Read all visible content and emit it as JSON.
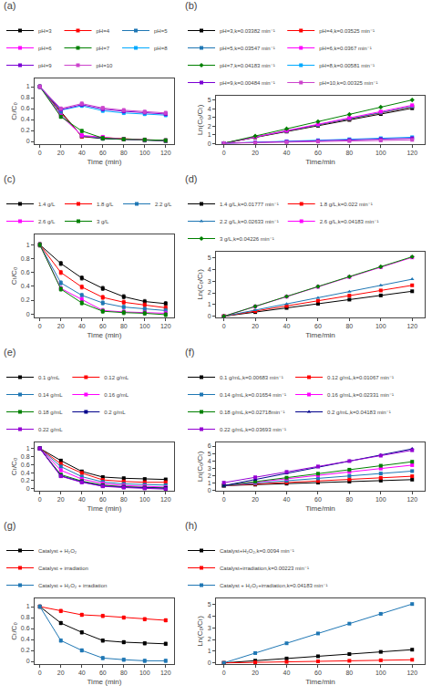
{
  "chart_data": [
    {
      "type": "line",
      "title": "(a)",
      "xlabel": "Time (min)",
      "ylabel": "Cₜ/C₀",
      "x": [
        0,
        20,
        40,
        60,
        80,
        100,
        120
      ],
      "xlim": [
        -5,
        128
      ],
      "xticks": [
        0,
        20,
        40,
        60,
        80,
        100,
        120
      ],
      "ylim": [
        -0.05,
        1.15
      ],
      "yticks": [
        0,
        0.2,
        0.4,
        0.6,
        0.8,
        1
      ],
      "grid": false,
      "series": [
        {
          "name": "pH=3",
          "color": "#000000",
          "marker": "square",
          "values": [
            1.0,
            0.55,
            0.09,
            0.05,
            0.04,
            0.02,
            0.01
          ],
          "error": 0.03
        },
        {
          "name": "pH=4",
          "color": "#ff0000",
          "marker": "square",
          "values": [
            1.0,
            0.53,
            0.09,
            0.07,
            0.04,
            0.02,
            0.01
          ],
          "error": 0.03
        },
        {
          "name": "pH=5",
          "color": "#1f77b4",
          "marker": "square",
          "values": [
            1.0,
            0.5,
            0.1,
            0.06,
            0.04,
            0.02,
            0.01
          ],
          "error": 0.03
        },
        {
          "name": "pH=6",
          "color": "#ff00ff",
          "marker": "square",
          "values": [
            1.0,
            0.47,
            0.11,
            0.08,
            0.04,
            0.03,
            0.02
          ],
          "error": 0.03
        },
        {
          "name": "pH=7",
          "color": "#008000",
          "marker": "square",
          "values": [
            1.0,
            0.45,
            0.19,
            0.06,
            0.04,
            0.03,
            0.02
          ],
          "error": 0.03
        },
        {
          "name": "pH=8",
          "color": "#00aaff",
          "marker": "square",
          "values": [
            1.0,
            0.57,
            0.65,
            0.56,
            0.52,
            0.5,
            0.48
          ],
          "error": 0.03
        },
        {
          "name": "pH=9",
          "color": "#7b00d4",
          "marker": "square",
          "values": [
            1.0,
            0.58,
            0.67,
            0.59,
            0.55,
            0.53,
            0.5
          ],
          "error": 0.03
        },
        {
          "name": "pH=10",
          "color": "#cc44cc",
          "marker": "square",
          "values": [
            1.0,
            0.6,
            0.69,
            0.61,
            0.57,
            0.54,
            0.52
          ],
          "error": 0.03
        }
      ]
    },
    {
      "type": "line",
      "title": "(b)",
      "xlabel": "Time/min",
      "ylabel": "Ln(C₀/Cₜ)",
      "x": [
        0,
        20,
        40,
        60,
        80,
        100,
        120
      ],
      "xlim": [
        -5,
        128
      ],
      "xticks": [
        0,
        20,
        40,
        60,
        80,
        100,
        120
      ],
      "ylim": [
        -0.1,
        5.5
      ],
      "yticks": [
        0,
        1,
        2,
        3,
        4,
        5
      ],
      "grid": false,
      "series": [
        {
          "name": "pH=3,k=0.03382 min⁻¹",
          "color": "#000000",
          "marker": "square",
          "values": [
            0,
            0.6764,
            1.3528,
            2.0292,
            2.7056,
            3.382,
            4.0584
          ]
        },
        {
          "name": "pH=4,k=0.03525 min⁻¹",
          "color": "#ff0000",
          "marker": "square",
          "values": [
            0,
            0.705,
            1.41,
            2.115,
            2.82,
            3.525,
            4.23
          ]
        },
        {
          "name": "pH=5,k=0.03547 min⁻¹",
          "color": "#1f77b4",
          "marker": "square",
          "values": [
            0,
            0.7094,
            1.4188,
            2.1282,
            2.8376,
            3.547,
            4.2564
          ]
        },
        {
          "name": "pH=6,k=0.0367 min⁻¹",
          "color": "#ff00ff",
          "marker": "square",
          "values": [
            0,
            0.734,
            1.468,
            2.202,
            2.936,
            3.67,
            4.404
          ]
        },
        {
          "name": "pH=7,k=0.04183 min⁻¹",
          "color": "#008000",
          "marker": "diamond",
          "values": [
            0,
            0.8366,
            1.6732,
            2.5098,
            3.3464,
            4.183,
            5.0196
          ]
        },
        {
          "name": "pH=8,k=0.00581 min⁻¹",
          "color": "#00aaff",
          "marker": "square",
          "values": [
            0,
            0.1162,
            0.2324,
            0.3486,
            0.4648,
            0.581,
            0.6972
          ]
        },
        {
          "name": "pH=9,k=0.00484 min⁻¹",
          "color": "#7b00d4",
          "marker": "square",
          "values": [
            0,
            0.0968,
            0.1936,
            0.2904,
            0.3872,
            0.484,
            0.5808
          ]
        },
        {
          "name": "pH=10,k=0.00325 min⁻¹",
          "color": "#cc44cc",
          "marker": "square",
          "values": [
            0,
            0.065,
            0.13,
            0.195,
            0.26,
            0.325,
            0.39
          ]
        }
      ]
    },
    {
      "type": "line",
      "title": "(c)",
      "xlabel": "Time (min)",
      "ylabel": "Cₜ/C₀",
      "x": [
        0,
        20,
        40,
        60,
        80,
        100,
        120
      ],
      "xlim": [
        -5,
        128
      ],
      "xticks": [
        0,
        20,
        40,
        60,
        80,
        100,
        120
      ],
      "ylim": [
        -0.05,
        1.15
      ],
      "yticks": [
        0,
        0.2,
        0.4,
        0.6,
        0.8,
        1
      ],
      "grid": false,
      "series": [
        {
          "name": "1.4 g/L",
          "color": "#000000",
          "marker": "square",
          "values": [
            1.0,
            0.73,
            0.52,
            0.37,
            0.25,
            0.18,
            0.15
          ],
          "error": 0.03
        },
        {
          "name": "1.8 g/L",
          "color": "#ff0000",
          "marker": "square",
          "values": [
            1.0,
            0.6,
            0.39,
            0.24,
            0.17,
            0.13,
            0.09
          ],
          "error": 0.03
        },
        {
          "name": "2.2 g/L",
          "color": "#1f77b4",
          "marker": "square",
          "values": [
            1.0,
            0.45,
            0.27,
            0.16,
            0.1,
            0.07,
            0.05
          ],
          "error": 0.03
        },
        {
          "name": "2.6 g/L",
          "color": "#ff00ff",
          "marker": "square",
          "values": [
            1.0,
            0.37,
            0.21,
            0.05,
            0.03,
            0.02,
            0.01
          ],
          "error": 0.03
        },
        {
          "name": "3 g/L",
          "color": "#008000",
          "marker": "square",
          "values": [
            1.0,
            0.36,
            0.16,
            0.04,
            0.02,
            0.01,
            -0.01
          ],
          "error": 0.03
        }
      ]
    },
    {
      "type": "line",
      "title": "(d)",
      "xlabel": "Time/min",
      "ylabel": "Ln(C₀/Cₜ)",
      "x": [
        0,
        20,
        40,
        60,
        80,
        100,
        120
      ],
      "xlim": [
        -5,
        128
      ],
      "xticks": [
        0,
        20,
        40,
        60,
        80,
        100,
        120
      ],
      "ylim": [
        -0.1,
        5.5
      ],
      "yticks": [
        0,
        1,
        2,
        3,
        4,
        5
      ],
      "grid": false,
      "series": [
        {
          "name": "1.4 g/L,k=0.01777 min⁻¹",
          "color": "#000000",
          "marker": "square",
          "values": [
            0,
            0.3554,
            0.7108,
            1.0662,
            1.4216,
            1.777,
            2.1324
          ]
        },
        {
          "name": "1.8 g/L,k=0.022 min⁻¹",
          "color": "#ff0000",
          "marker": "square",
          "values": [
            0,
            0.44,
            0.88,
            1.32,
            1.76,
            2.2,
            2.64
          ]
        },
        {
          "name": "2.2 g/L,k=0.02633 min⁻¹",
          "color": "#1f77b4",
          "marker": "triangle-up",
          "values": [
            0,
            0.5266,
            1.0532,
            1.5798,
            2.1064,
            2.633,
            3.1596
          ]
        },
        {
          "name": "2.6 g/L,k=0.04183 min⁻¹",
          "color": "#ff00ff",
          "marker": "square",
          "values": [
            0,
            0.8366,
            1.6732,
            2.5098,
            3.3464,
            4.183,
            5.0196
          ]
        },
        {
          "name": "3 g/L,k=0.04226 min⁻¹",
          "color": "#008000",
          "marker": "diamond",
          "values": [
            0,
            0.8452,
            1.6904,
            2.5356,
            3.3808,
            4.226,
            5.0712
          ]
        }
      ]
    },
    {
      "type": "line",
      "title": "(e)",
      "xlabel": "Time (min)",
      "ylabel": "Cₜ/C₀",
      "x": [
        0,
        20,
        40,
        60,
        80,
        100,
        120
      ],
      "xlim": [
        -5,
        128
      ],
      "xticks": [
        0,
        20,
        40,
        60,
        80,
        100,
        120
      ],
      "ylim": [
        -0.05,
        1.15
      ],
      "yticks": [
        0,
        0.2,
        0.4,
        0.6,
        0.8,
        1
      ],
      "grid": false,
      "series": [
        {
          "name": "0.1 g/mL",
          "color": "#000000",
          "marker": "square",
          "values": [
            1.0,
            0.7,
            0.43,
            0.29,
            0.26,
            0.24,
            0.23
          ],
          "error": 0.03
        },
        {
          "name": "0.12 g/mL",
          "color": "#ff0000",
          "marker": "square",
          "values": [
            1.0,
            0.62,
            0.39,
            0.22,
            0.18,
            0.16,
            0.16
          ],
          "error": 0.03
        },
        {
          "name": "0.14 g/mL",
          "color": "#1f77b4",
          "marker": "square",
          "values": [
            1.0,
            0.55,
            0.3,
            0.17,
            0.12,
            0.1,
            0.09
          ],
          "error": 0.03
        },
        {
          "name": "0.16 g/mL",
          "color": "#ff00ff",
          "marker": "square",
          "values": [
            1.0,
            0.46,
            0.24,
            0.13,
            0.08,
            0.06,
            0.04
          ],
          "error": 0.03
        },
        {
          "name": "0.18 g/mL",
          "color": "#008000",
          "marker": "square",
          "values": [
            1.0,
            0.35,
            0.19,
            0.09,
            0.05,
            0.03,
            0.02
          ],
          "error": 0.03
        },
        {
          "name": "0.2 g/mL",
          "color": "#00008b",
          "marker": "square",
          "values": [
            1.0,
            0.32,
            0.17,
            0.07,
            0.04,
            0.02,
            0.01
          ],
          "error": 0.03
        },
        {
          "name": "0.22 g/mL",
          "color": "#9400d3",
          "marker": "square",
          "values": [
            1.0,
            0.31,
            0.16,
            0.06,
            0.03,
            0.01,
            -0.01
          ],
          "error": 0.03
        }
      ]
    },
    {
      "type": "line",
      "title": "(f)",
      "xlabel": "Time/min",
      "ylabel": "Ln(C₀/Cₜ)",
      "x": [
        0,
        20,
        40,
        60,
        80,
        100,
        120
      ],
      "xlim": [
        -5,
        128
      ],
      "xticks": [
        0,
        20,
        40,
        60,
        80,
        100,
        120
      ],
      "ylim": [
        -0.1,
        6.5
      ],
      "yticks": [
        0,
        1,
        2,
        3,
        4,
        5,
        6
      ],
      "grid": false,
      "series": [
        {
          "name": "0.1 g/mL,k=0.00683 min⁻¹",
          "color": "#000000",
          "marker": "square",
          "values": [
            0.6,
            0.7366,
            0.8732,
            1.0098,
            1.1464,
            1.283,
            1.4196
          ]
        },
        {
          "name": "0.12 g/mL,k=0.01067 min⁻¹",
          "color": "#ff0000",
          "marker": "square",
          "values": [
            0.6,
            0.8134,
            1.0268,
            1.2402,
            1.4536,
            1.667,
            1.8804
          ]
        },
        {
          "name": "0.14 g/mL,k=0.01654 min⁻¹",
          "color": "#1f77b4",
          "marker": "square",
          "values": [
            0.6,
            0.9308,
            1.2616,
            1.5924,
            1.9232,
            2.254,
            2.5848
          ]
        },
        {
          "name": "0.16 g/mL,k=0.02331 min⁻¹",
          "color": "#ff00ff",
          "marker": "square",
          "values": [
            0.6,
            1.0662,
            1.5324,
            1.9986,
            2.4648,
            2.931,
            3.3972
          ]
        },
        {
          "name": "0.18 g/mL,k=0.02718min⁻¹",
          "color": "#008000",
          "marker": "square",
          "values": [
            0.6,
            1.1436,
            1.6872,
            2.2308,
            2.7744,
            3.318,
            3.8616
          ]
        },
        {
          "name": "0.2 g/mL,k=0.04183 min⁻¹",
          "color": "#00008b",
          "marker": "triangle-up",
          "values": [
            0.6,
            1.4366,
            2.2732,
            3.1098,
            3.9464,
            4.783,
            5.6196
          ]
        },
        {
          "name": "0.22 g/mL,k=0.03693 min⁻¹",
          "color": "#9400d3",
          "marker": "square",
          "values": [
            1,
            1.7386,
            2.4772,
            3.2158,
            3.9544,
            4.693,
            5.4316
          ]
        }
      ]
    },
    {
      "type": "line",
      "title": "(g)",
      "xlabel": "Time (min)",
      "ylabel": "Cₜ/C₀",
      "x": [
        0,
        20,
        40,
        60,
        80,
        100,
        120
      ],
      "xlim": [
        -5,
        128
      ],
      "xticks": [
        0,
        20,
        40,
        60,
        80,
        100,
        120
      ],
      "ylim": [
        -0.05,
        1.15
      ],
      "yticks": [
        0,
        0.2,
        0.4,
        0.6,
        0.8,
        1
      ],
      "grid": false,
      "series": [
        {
          "name": "Catalyst + H₂O₂",
          "color": "#000000",
          "marker": "square",
          "values": [
            1.0,
            0.7,
            0.53,
            0.38,
            0.35,
            0.33,
            0.32
          ],
          "error": 0.03
        },
        {
          "name": "Catalyst + irradiation",
          "color": "#ff0000",
          "marker": "square",
          "values": [
            1.0,
            0.92,
            0.85,
            0.83,
            0.8,
            0.77,
            0.75
          ],
          "error": 0.03
        },
        {
          "name": "Catalyst + H₂O₂ + irradiation",
          "color": "#1f77b4",
          "marker": "square",
          "values": [
            1.0,
            0.38,
            0.2,
            0.06,
            0.03,
            0.01,
            0.01
          ],
          "error": 0.03
        }
      ]
    },
    {
      "type": "line",
      "title": "(h)",
      "xlabel": "Time/min",
      "ylabel": "Ln(C₀/Cₜ)",
      "x": [
        0,
        20,
        40,
        60,
        80,
        100,
        120
      ],
      "xlim": [
        -5,
        128
      ],
      "xticks": [
        0,
        20,
        40,
        60,
        80,
        100,
        120
      ],
      "ylim": [
        -0.1,
        5.5
      ],
      "yticks": [
        0,
        1,
        2,
        3,
        4,
        5
      ],
      "grid": false,
      "series": [
        {
          "name": "Catalyst+H₂O₂,k=0.0094 min⁻¹",
          "color": "#000000",
          "marker": "square",
          "values": [
            0,
            0.188,
            0.376,
            0.564,
            0.752,
            0.94,
            1.128
          ]
        },
        {
          "name": "Catalyst+irradiation,k=0.00223 min⁻¹",
          "color": "#ff0000",
          "marker": "square",
          "values": [
            0,
            0.0446,
            0.0892,
            0.1338,
            0.1784,
            0.223,
            0.2676
          ]
        },
        {
          "name": "Catalyst + H₂O₂+irradiation,k=0.04183 min⁻¹",
          "color": "#1f77b4",
          "marker": "square",
          "values": [
            0,
            0.8366,
            1.6732,
            2.5098,
            3.3464,
            4.183,
            5.0196
          ]
        }
      ]
    }
  ]
}
